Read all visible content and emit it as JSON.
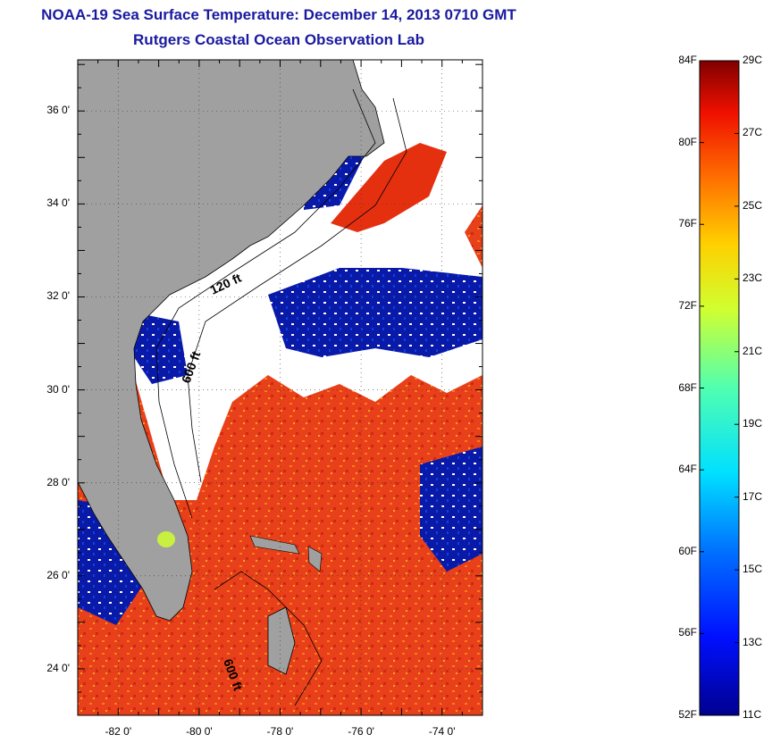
{
  "header": {
    "title": "NOAA-19 Sea Surface Temperature:  December 14, 2013 0710 GMT",
    "subtitle": "Rutgers Coastal Ocean Observation Lab"
  },
  "map": {
    "lat_labels": [
      "36 0'",
      "34 0'",
      "32 0'",
      "30 0'",
      "28 0'",
      "26 0'",
      "24 0'"
    ],
    "lon_labels": [
      "-82 0'",
      "-80 0'",
      "-78 0'",
      "-76 0'",
      "-74 0'"
    ],
    "lat_range": [
      23.0,
      37.1
    ],
    "lon_range": [
      -83.0,
      -73.0
    ],
    "contours": [
      "120 ft",
      "600 ft",
      "600 ft"
    ],
    "colors": {
      "land": "#a0a0a0",
      "cloud": "#ffffff",
      "water_warm": "#e8401a",
      "water_cold": "#0a1aa8"
    }
  },
  "colorbar": {
    "fahrenheit": [
      "84F",
      "80F",
      "76F",
      "72F",
      "68F",
      "64F",
      "60F",
      "56F",
      "52F"
    ],
    "celsius": [
      "29C",
      "27C",
      "25C",
      "23C",
      "21C",
      "19C",
      "17C",
      "15C",
      "13C",
      "11C"
    ],
    "range_f": [
      52,
      84
    ],
    "range_c": [
      11,
      29
    ]
  }
}
